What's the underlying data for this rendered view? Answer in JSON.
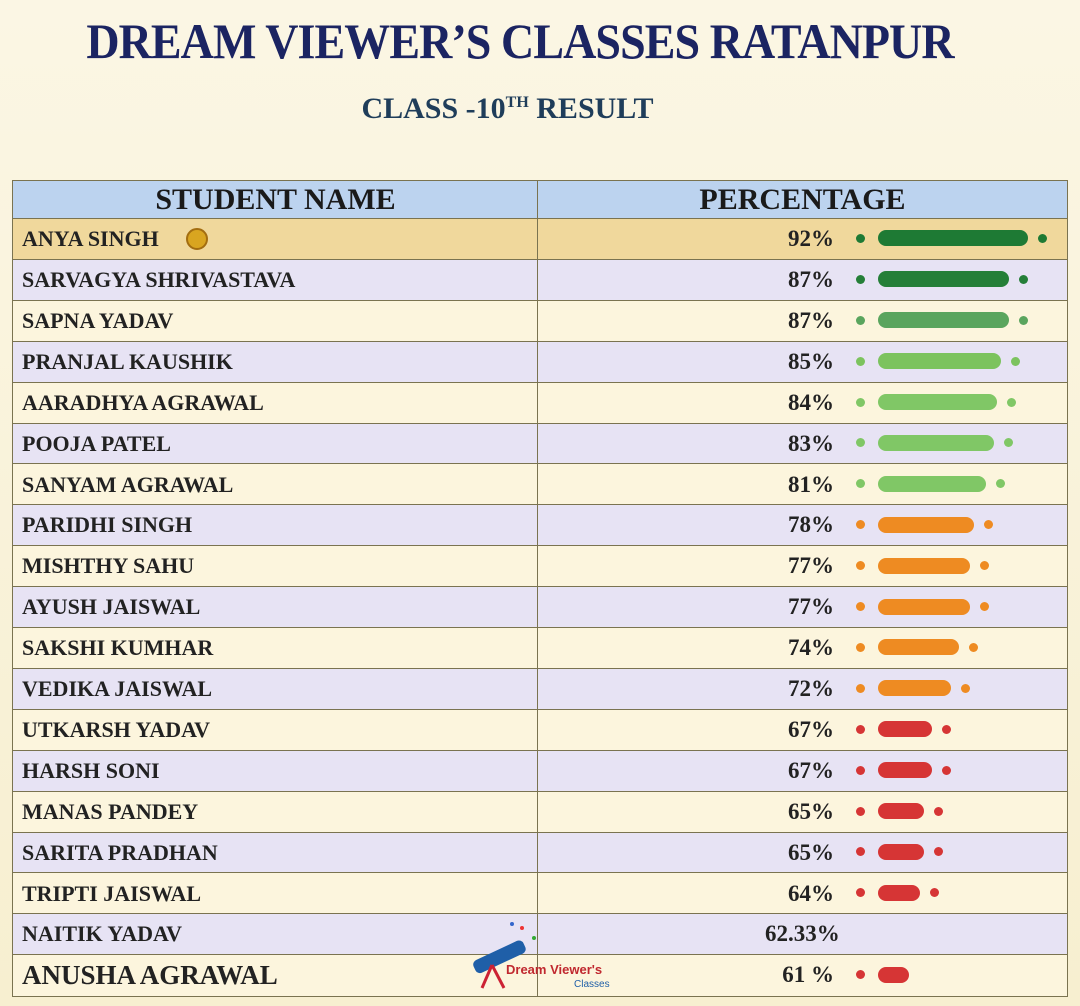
{
  "header": {
    "title": "DREAM VIEWER’S CLASSES RATANPUR",
    "subtitle": {
      "lead": "CLASS -10",
      "sup": "TH",
      "tail": "RESULT"
    }
  },
  "table": {
    "columns": [
      "STUDENT NAME",
      "PERCENTAGE"
    ],
    "rows": [
      {
        "name": "ANYA SINGH",
        "percentage": "92%",
        "value": 92,
        "color": "#1e7a34"
      },
      {
        "name": "SARVAGYA SHRIVASTAVA",
        "percentage": "87%",
        "value": 87,
        "color": "#257f38"
      },
      {
        "name": "SAPNA YADAV",
        "percentage": "87%",
        "value": 87,
        "color": "#5aa55e"
      },
      {
        "name": "PRANJAL KAUSHIK",
        "percentage": "85%",
        "value": 85,
        "color": "#7cc35e"
      },
      {
        "name": "AARADHYA AGRAWAL",
        "percentage": "84%",
        "value": 84,
        "color": "#80c766"
      },
      {
        "name": "POOJA PATEL",
        "percentage": "83%",
        "value": 83,
        "color": "#80c766"
      },
      {
        "name": "SANYAM AGRAWAL",
        "percentage": "81%",
        "value": 81,
        "color": "#80c766"
      },
      {
        "name": "PARIDHI SINGH",
        "percentage": "78%",
        "value": 78,
        "color": "#ee8b22"
      },
      {
        "name": "MISHTHY SAHU",
        "percentage": "77%",
        "value": 77,
        "color": "#ee8b22"
      },
      {
        "name": "AYUSH JAISWAL",
        "percentage": "77%",
        "value": 77,
        "color": "#ee8b22"
      },
      {
        "name": "SAKSHI KUMHAR",
        "percentage": "74%",
        "value": 74,
        "color": "#ee8b22"
      },
      {
        "name": "VEDIKA JAISWAL",
        "percentage": "72%",
        "value": 72,
        "color": "#ee8b22"
      },
      {
        "name": "UTKARSH YADAV",
        "percentage": "67%",
        "value": 67,
        "color": "#d63535"
      },
      {
        "name": "HARSH SONI",
        "percentage": "67%",
        "value": 67,
        "color": "#d63535"
      },
      {
        "name": "MANAS PANDEY",
        "percentage": "65%",
        "value": 65,
        "color": "#d63535"
      },
      {
        "name": "SARITA PRADHAN",
        "percentage": "65%",
        "value": 65,
        "color": "#d63535"
      },
      {
        "name": "TRIPTI JAISWAL",
        "percentage": "64%",
        "value": 64,
        "color": "#d63535"
      },
      {
        "name": "NAITIK YADAV",
        "percentage": "62.33%"
      },
      {
        "name": "ANUSHA AGRAWAL",
        "percentage": "61 %",
        "value": 61,
        "color": "#d63535"
      }
    ]
  },
  "logo": {
    "line1": "Dream Viewer's",
    "line2": "Classes"
  }
}
